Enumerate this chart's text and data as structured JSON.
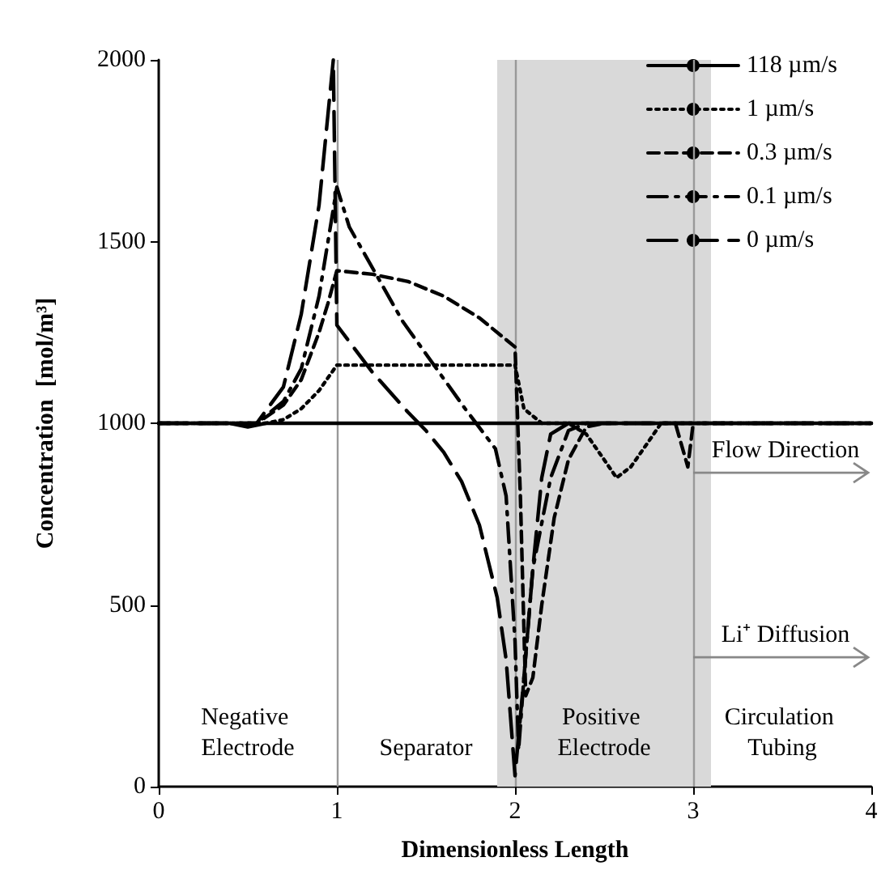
{
  "chart_data": {
    "type": "line",
    "xlabel": "Dimensionless Length",
    "ylabel": "Concentration  [mol/m³]",
    "xlim": [
      0,
      4
    ],
    "xticks": [
      0,
      1,
      2,
      3,
      4
    ],
    "ylim": [
      0,
      2000
    ],
    "yticks": [
      0,
      500,
      1000,
      1500,
      2000
    ],
    "grid": false,
    "legend": "top right",
    "marker": "none",
    "series": [
      {
        "name": "118 µm/s",
        "color": "#000000",
        "line_style": "solid",
        "x": [
          0,
          0.4,
          0.5,
          0.6,
          4
        ],
        "values": [
          1000,
          1000,
          990,
          1000,
          1000
        ]
      },
      {
        "name": "1 µm/s",
        "color": "#000000",
        "line_style": "dotted",
        "x": [
          0,
          0.6,
          0.7,
          0.8,
          0.9,
          1.0,
          2.0,
          2.05,
          2.15,
          2.3,
          2.4,
          2.5,
          2.57,
          2.65,
          2.75,
          2.82,
          3.0,
          4
        ],
        "values": [
          1000,
          1000,
          1010,
          1040,
          1090,
          1160,
          1160,
          1040,
          1000,
          1000,
          970,
          900,
          850,
          880,
          950,
          1000,
          1000,
          1000
        ]
      },
      {
        "name": "0.3 µm/s",
        "color": "#000000",
        "line_style": "dashed",
        "x": [
          0,
          0.55,
          0.7,
          0.8,
          0.9,
          0.95,
          1.0,
          1.2,
          1.4,
          1.6,
          1.8,
          1.95,
          2.0,
          2.03,
          2.06,
          2.1,
          2.15,
          2.22,
          2.3,
          2.4,
          2.5,
          2.9,
          2.97,
          3.0,
          4
        ],
        "values": [
          1000,
          1000,
          1050,
          1120,
          1250,
          1330,
          1420,
          1410,
          1390,
          1350,
          1290,
          1230,
          1210,
          800,
          250,
          300,
          500,
          740,
          900,
          990,
          1000,
          1000,
          880,
          1000,
          1000
        ]
      },
      {
        "name": "0.1 µm/s",
        "color": "#000000",
        "line_style": "dashed",
        "x": [
          0,
          0.55,
          0.7,
          0.8,
          0.9,
          0.95,
          1.0,
          1.07,
          1.37,
          1.72,
          1.89,
          1.95,
          2.0,
          2.02,
          2.05,
          2.1,
          2.2,
          2.3,
          2.4,
          4
        ],
        "values": [
          1000,
          1000,
          1060,
          1150,
          1350,
          1500,
          1650,
          1540,
          1280,
          1040,
          930,
          800,
          400,
          100,
          300,
          600,
          850,
          980,
          1000,
          1000
        ]
      },
      {
        "name": "0 µm/s",
        "color": "#000000",
        "line_style": "dashed",
        "x": [
          0,
          0.55,
          0.7,
          0.8,
          0.9,
          0.95,
          0.98,
          1.0,
          1.2,
          1.4,
          1.5,
          1.6,
          1.7,
          1.8,
          1.9,
          1.95,
          2.0,
          2.05,
          2.1,
          2.15,
          2.2,
          2.3,
          4
        ],
        "values": [
          1000,
          1000,
          1100,
          1300,
          1600,
          1850,
          2000,
          1270,
          1140,
          1030,
          980,
          920,
          840,
          720,
          520,
          350,
          30,
          300,
          600,
          850,
          970,
          1000,
          1000
        ]
      }
    ],
    "ref_lines": [
      {
        "axis": "x",
        "value": 1,
        "color": "#999999"
      },
      {
        "axis": "x",
        "value": 2,
        "color": "#999999"
      },
      {
        "axis": "x",
        "value": 3,
        "color": "#999999"
      }
    ],
    "bands": [
      {
        "axis": "x",
        "from": 1.9,
        "to": 3.1,
        "color": "#d9d9d9"
      }
    ],
    "annotations": [
      "Negative Electrode",
      "Separator",
      "Positive Electrode",
      "Circulation Tubing",
      "Flow Direction",
      "Li⁺ Diffusion"
    ]
  }
}
